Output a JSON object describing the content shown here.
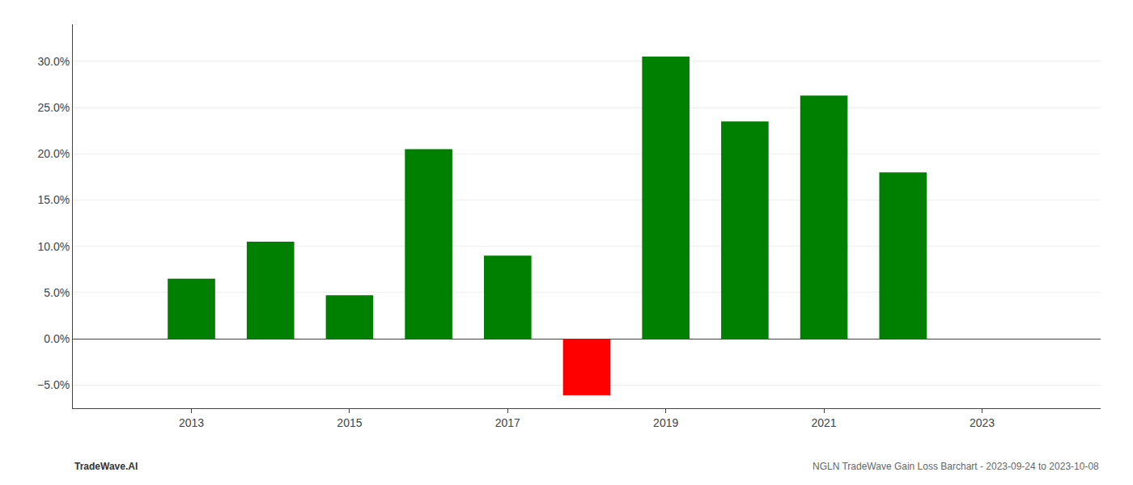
{
  "chart_data": {
    "type": "bar",
    "title": "NGLN TradeWave Gain Loss Barchart - 2023-09-24 to 2023-10-08",
    "annotations": [
      "TradeWave.AI"
    ],
    "x": [
      2013,
      2014,
      2015,
      2016,
      2017,
      2018,
      2019,
      2020,
      2021,
      2022
    ],
    "values": [
      0.065,
      0.105,
      0.047,
      0.205,
      0.09,
      -0.061,
      0.305,
      0.235,
      0.263,
      0.18
    ],
    "colors": [
      "#008000",
      "#008000",
      "#008000",
      "#008000",
      "#008000",
      "#ff0000",
      "#008000",
      "#008000",
      "#008000",
      "#008000"
    ],
    "xlim": [
      2011.5,
      2024.5
    ],
    "xticks": [
      2013,
      2015,
      2017,
      2019,
      2021,
      2023
    ],
    "ylim": [
      -0.075,
      0.34
    ],
    "yticks": [
      {
        "value": -0.05,
        "label": "−5.0%"
      },
      {
        "value": 0.0,
        "label": "0.0%"
      },
      {
        "value": 0.05,
        "label": "5.0%"
      },
      {
        "value": 0.1,
        "label": "10.0%"
      },
      {
        "value": 0.15,
        "label": "15.0%"
      },
      {
        "value": 0.2,
        "label": "20.0%"
      },
      {
        "value": 0.25,
        "label": "25.0%"
      },
      {
        "value": 0.3,
        "label": "30.0%"
      }
    ],
    "grid": true
  }
}
